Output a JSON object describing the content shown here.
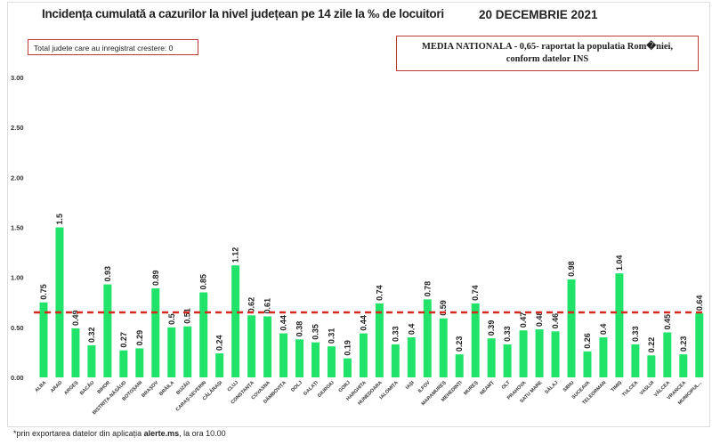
{
  "chart_data": {
    "type": "bar",
    "title": "Incidența cumulată a cazurilor la nivel județean pe 14 zile la ‰ de locuitori",
    "date": "20 DECEMBRIE 2021",
    "annotation_left": "Total judete care au inregistrat crestere: 0",
    "annotation_right": [
      "MEDIA NATIONALA - 0,65-  raportat la populatia Rom�niei,",
      "conform datelor INS"
    ],
    "footnote_prefix": "*prin exportarea datelor din aplicația ",
    "footnote_bold": "alerte.ms",
    "footnote_suffix": ", la ora 10.00",
    "ylim": [
      0,
      3
    ],
    "yticks": [
      "0.00",
      "0.50",
      "1.00",
      "1.50",
      "2.00",
      "2.50",
      "3.00"
    ],
    "reference_line": {
      "value": 0.65,
      "style": "dashed",
      "color": "#d42a1f"
    },
    "bar_color": "#22e36a",
    "grid": false,
    "categories": [
      "ALBA",
      "ARAD",
      "ARGEȘ",
      "BACĂU",
      "BIHOR",
      "BISTRIȚA-NĂSĂUD",
      "BOTOȘANI",
      "BRAȘOV",
      "BRĂILA",
      "BUZĂU",
      "CARAȘ-SEVERIN",
      "CĂLĂRAȘI",
      "CLUJ",
      "CONSTANȚA",
      "COVASNA",
      "DÂMBOVIȚA",
      "DOLJ",
      "GALAȚI",
      "GIURGIU",
      "GORJ",
      "HARGHITA",
      "HUNEDOARA",
      "IALOMIȚA",
      "IAȘI",
      "ILFOV",
      "MARAMUREȘ",
      "MEHEDINȚI",
      "MUREȘ",
      "NEAMȚ",
      "OLT",
      "PRAHOVA",
      "SATU MARE",
      "SĂLAJ",
      "SIBIU",
      "SUCEAVA",
      "TELEORMAN",
      "TIMIȘ",
      "TULCEA",
      "VASLUI",
      "VÂLCEA",
      "VRANCEA",
      "MUNICIPUL..."
    ],
    "values": [
      0.75,
      1.5,
      0.49,
      0.32,
      0.93,
      0.27,
      0.29,
      0.89,
      0.5,
      0.51,
      0.85,
      0.24,
      1.12,
      0.62,
      0.61,
      0.44,
      0.38,
      0.35,
      0.31,
      0.19,
      0.44,
      0.74,
      0.33,
      0.4,
      0.78,
      0.59,
      0.23,
      0.74,
      0.39,
      0.33,
      0.47,
      0.48,
      0.46,
      0.98,
      0.26,
      0.4,
      1.04,
      0.33,
      0.22,
      0.45,
      0.23,
      0.64
    ]
  }
}
